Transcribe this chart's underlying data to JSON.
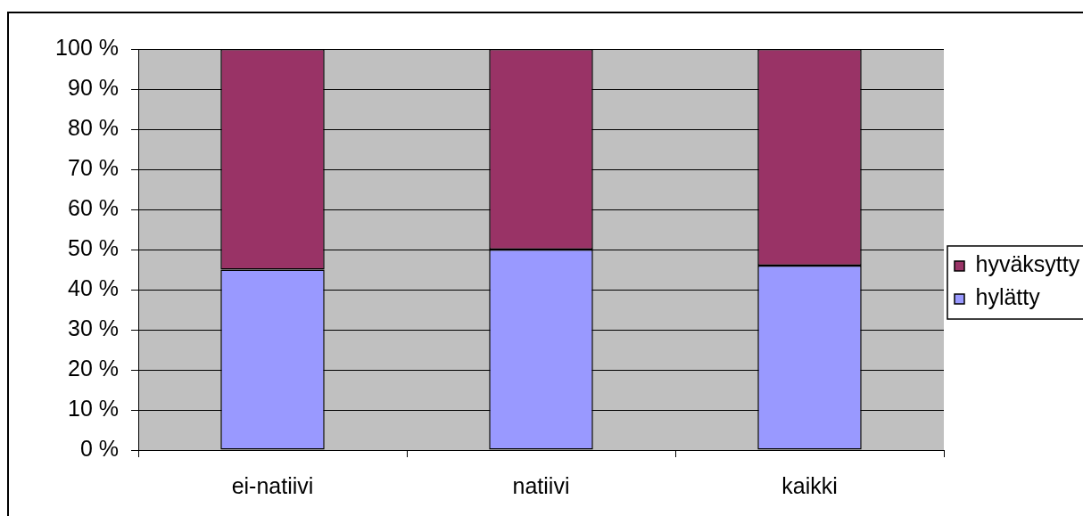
{
  "chart_data": {
    "type": "bar",
    "stacked": true,
    "categories": [
      "ei-natiivi",
      "natiivi",
      "kaikki"
    ],
    "series": [
      {
        "name": "hylätty",
        "color": "#9999ff",
        "values": [
          45,
          50,
          46
        ]
      },
      {
        "name": "hyväksytty",
        "color": "#993366",
        "values": [
          55,
          50,
          54
        ]
      }
    ],
    "ylim": [
      0,
      100
    ],
    "yticks": [
      {
        "value": 0,
        "label": "0 %"
      },
      {
        "value": 10,
        "label": "10 %"
      },
      {
        "value": 20,
        "label": "20 %"
      },
      {
        "value": 30,
        "label": "30 %"
      },
      {
        "value": 40,
        "label": "40 %"
      },
      {
        "value": 50,
        "label": "50 %"
      },
      {
        "value": 60,
        "label": "60 %"
      },
      {
        "value": 70,
        "label": "70 %"
      },
      {
        "value": 80,
        "label": "80 %"
      },
      {
        "value": 90,
        "label": "90 %"
      },
      {
        "value": 100,
        "label": "100 %"
      }
    ],
    "grid": "y",
    "legend": "right"
  }
}
